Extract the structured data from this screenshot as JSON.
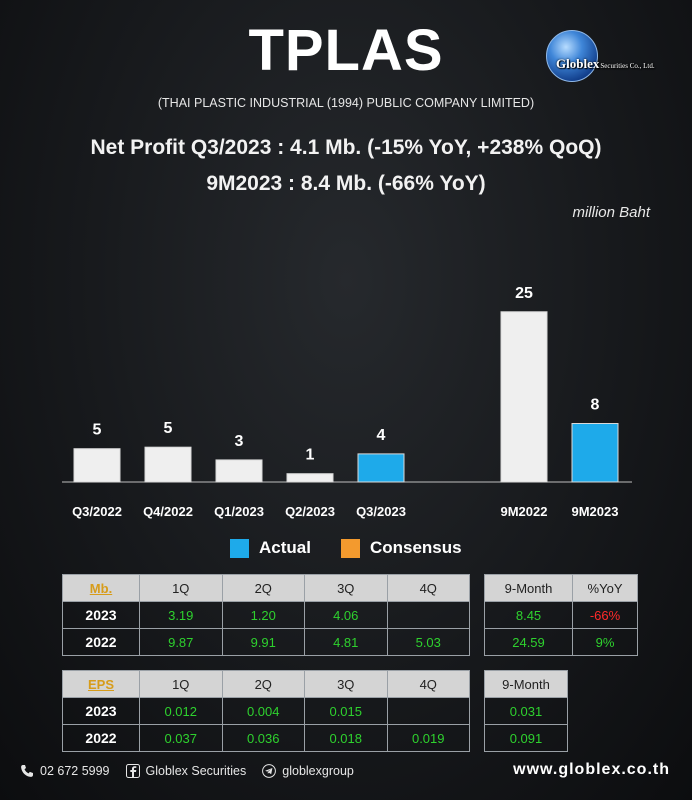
{
  "header": {
    "title": "TPLAS",
    "subtitle": "(THAI PLASTIC INDUSTRIAL (1994) PUBLIC COMPANY LIMITED)",
    "logo_text": "Globlex",
    "logo_subtext": "Securities Co., Ltd."
  },
  "headline": {
    "line1": "Net Profit  Q3/2023 : 4.1 Mb. (-15% YoY, +238% QoQ)",
    "line2": "9M2023 : 8.4 Mb. (-66% YoY)"
  },
  "unit": "million Baht",
  "chart_data": {
    "type": "bar",
    "categories": [
      "Q3/2022",
      "Q4/2022",
      "Q1/2023",
      "Q2/2023",
      "Q3/2023",
      "9M2022",
      "9M2023"
    ],
    "values": [
      4.81,
      5.03,
      3.19,
      1.2,
      4.06,
      24.59,
      8.45
    ],
    "labels": [
      "5",
      "5",
      "3",
      "1",
      "4",
      "25",
      "8"
    ],
    "bar_type": [
      "prior",
      "prior",
      "prior",
      "prior",
      "actual",
      "prior",
      "actual"
    ],
    "ylim": [
      0,
      26
    ],
    "colors": {
      "prior": "#efefef",
      "actual": "#1eaaea",
      "consensus": "#f39a2e"
    },
    "grid": false
  },
  "legend": {
    "actual": "Actual",
    "consensus": "Consensus"
  },
  "net_profit_table": {
    "key": "Mb.",
    "columns": [
      "1Q",
      "2Q",
      "3Q",
      "4Q"
    ],
    "rows": [
      {
        "year": "2023",
        "values": [
          "3.19",
          "1.20",
          "4.06",
          ""
        ]
      },
      {
        "year": "2022",
        "values": [
          "9.87",
          "9.91",
          "4.81",
          "5.03"
        ]
      }
    ]
  },
  "nine_month_table": {
    "columns": [
      "9-Month",
      "%YoY"
    ],
    "rows": [
      {
        "value": "8.45",
        "yoy": "-66%"
      },
      {
        "value": "24.59",
        "yoy": "9%"
      }
    ]
  },
  "eps_table": {
    "key": "EPS",
    "columns": [
      "1Q",
      "2Q",
      "3Q",
      "4Q"
    ],
    "rows": [
      {
        "year": "2023",
        "values": [
          "0.012",
          "0.004",
          "0.015",
          ""
        ]
      },
      {
        "year": "2022",
        "values": [
          "0.037",
          "0.036",
          "0.018",
          "0.019"
        ]
      }
    ]
  },
  "eps_nine_month_table": {
    "column": "9-Month",
    "rows": [
      "0.031",
      "0.091"
    ]
  },
  "footer": {
    "phone": "02 672 5999",
    "facebook": "Globlex Securities",
    "telegram": "globlexgroup",
    "website": "www.globlex.co.th"
  }
}
